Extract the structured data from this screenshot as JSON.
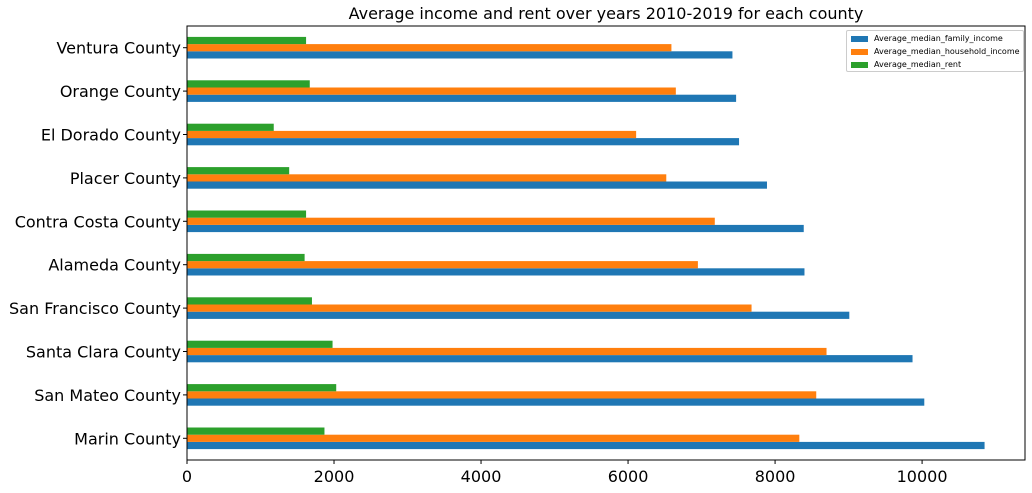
{
  "chart_data": {
    "type": "bar",
    "orientation": "horizontal",
    "title": "Average income and rent over years 2010-2019 for each county",
    "xlabel": "",
    "ylabel": "",
    "xlim": [
      0,
      11400
    ],
    "xticks": [
      0,
      2000,
      4000,
      6000,
      8000,
      10000
    ],
    "grid": false,
    "legend_position": "top-right",
    "categories": [
      "Marin County",
      "San Mateo County",
      "Santa Clara County",
      "San Francisco County",
      "Alameda County",
      "Contra Costa County",
      "Placer County",
      "El Dorado County",
      "Orange County",
      "Ventura County"
    ],
    "series": [
      {
        "name": "Average_median_family_income",
        "color": "#1f77b4",
        "values": [
          10850,
          10030,
          9870,
          9010,
          8400,
          8390,
          7890,
          7510,
          7470,
          7420
        ]
      },
      {
        "name": "Average_median_household_income",
        "color": "#ff7f0e",
        "values": [
          8330,
          8560,
          8700,
          7680,
          6950,
          7180,
          6520,
          6110,
          6650,
          6590
        ]
      },
      {
        "name": "Average_median_rent",
        "color": "#2ca02c",
        "values": [
          1870,
          2030,
          1980,
          1700,
          1600,
          1620,
          1390,
          1180,
          1670,
          1620
        ]
      }
    ]
  }
}
